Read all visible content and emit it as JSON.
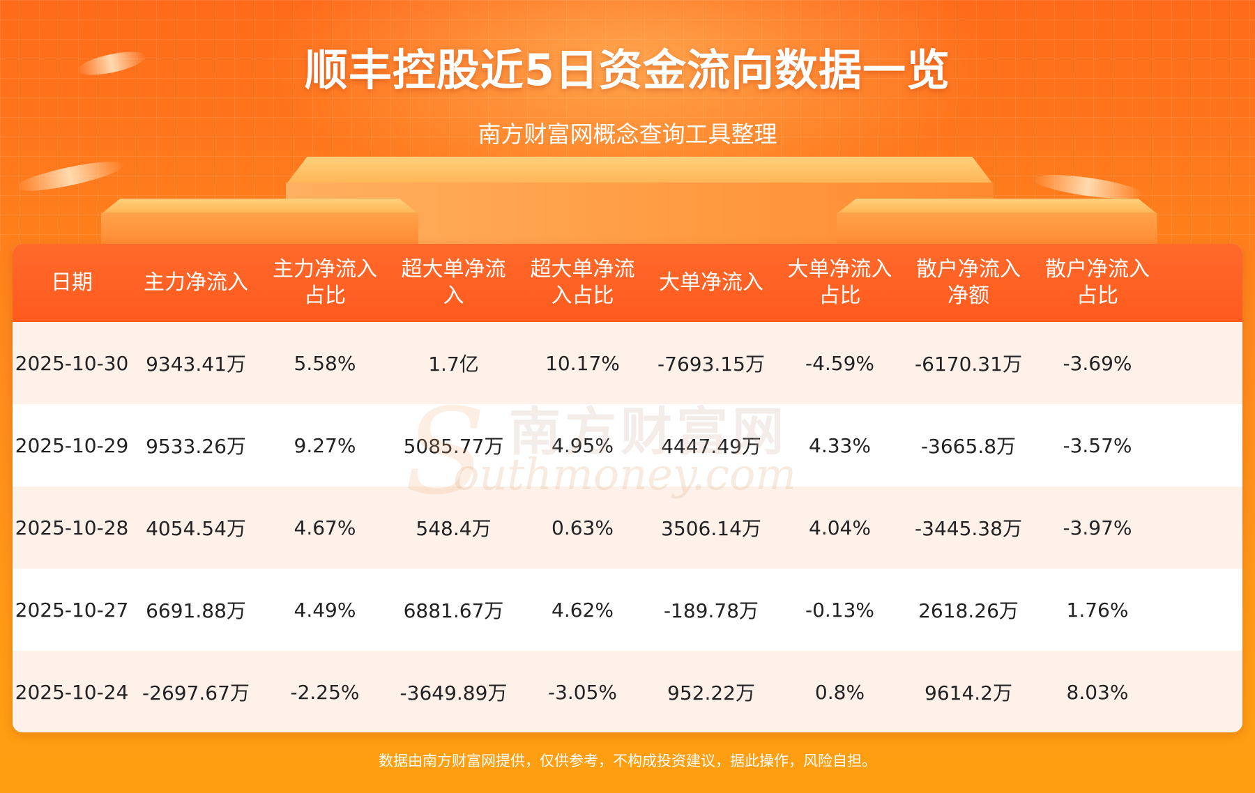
{
  "header": {
    "title": "顺丰控股近5日资金流向数据一览",
    "subtitle": "南方财富网概念查询工具整理"
  },
  "table": {
    "columns": [
      [
        "日期"
      ],
      [
        "主力净流入"
      ],
      [
        "主力净流入",
        "占比"
      ],
      [
        "超大单净流",
        "入"
      ],
      [
        "超大单净流",
        "入占比"
      ],
      [
        "大单净流入"
      ],
      [
        "大单净流入",
        "占比"
      ],
      [
        "散户净流入",
        "净额"
      ],
      [
        "散户净流入",
        "占比"
      ]
    ],
    "rows": [
      [
        "2025-10-30",
        "9343.41万",
        "5.58%",
        "1.7亿",
        "10.17%",
        "-7693.15万",
        "-4.59%",
        "-6170.31万",
        "-3.69%"
      ],
      [
        "2025-10-29",
        "9533.26万",
        "9.27%",
        "5085.77万",
        "4.95%",
        "4447.49万",
        "4.33%",
        "-3665.8万",
        "-3.57%"
      ],
      [
        "2025-10-28",
        "4054.54万",
        "4.67%",
        "548.4万",
        "0.63%",
        "3506.14万",
        "4.04%",
        "-3445.38万",
        "-3.97%"
      ],
      [
        "2025-10-27",
        "6691.88万",
        "4.49%",
        "6881.67万",
        "4.62%",
        "-189.78万",
        "-0.13%",
        "2618.26万",
        "1.76%"
      ],
      [
        "2025-10-24",
        "-2697.67万",
        "-2.25%",
        "-3649.89万",
        "-3.05%",
        "952.22万",
        "0.8%",
        "9614.2万",
        "8.03%"
      ]
    ]
  },
  "watermark": {
    "chinese": "南方财富网",
    "english": "outhmoney.com",
    "letter": "S"
  },
  "footer": {
    "disclaimer": "数据由南方财富网提供，仅供参考，不构成投资建议，据此操作，风险自担。"
  },
  "colors": {
    "header_bg": "#ff5a1e",
    "row_odd": "#fdf1ea",
    "row_even": "#ffffff",
    "page_bg": "#ff8a1e"
  }
}
